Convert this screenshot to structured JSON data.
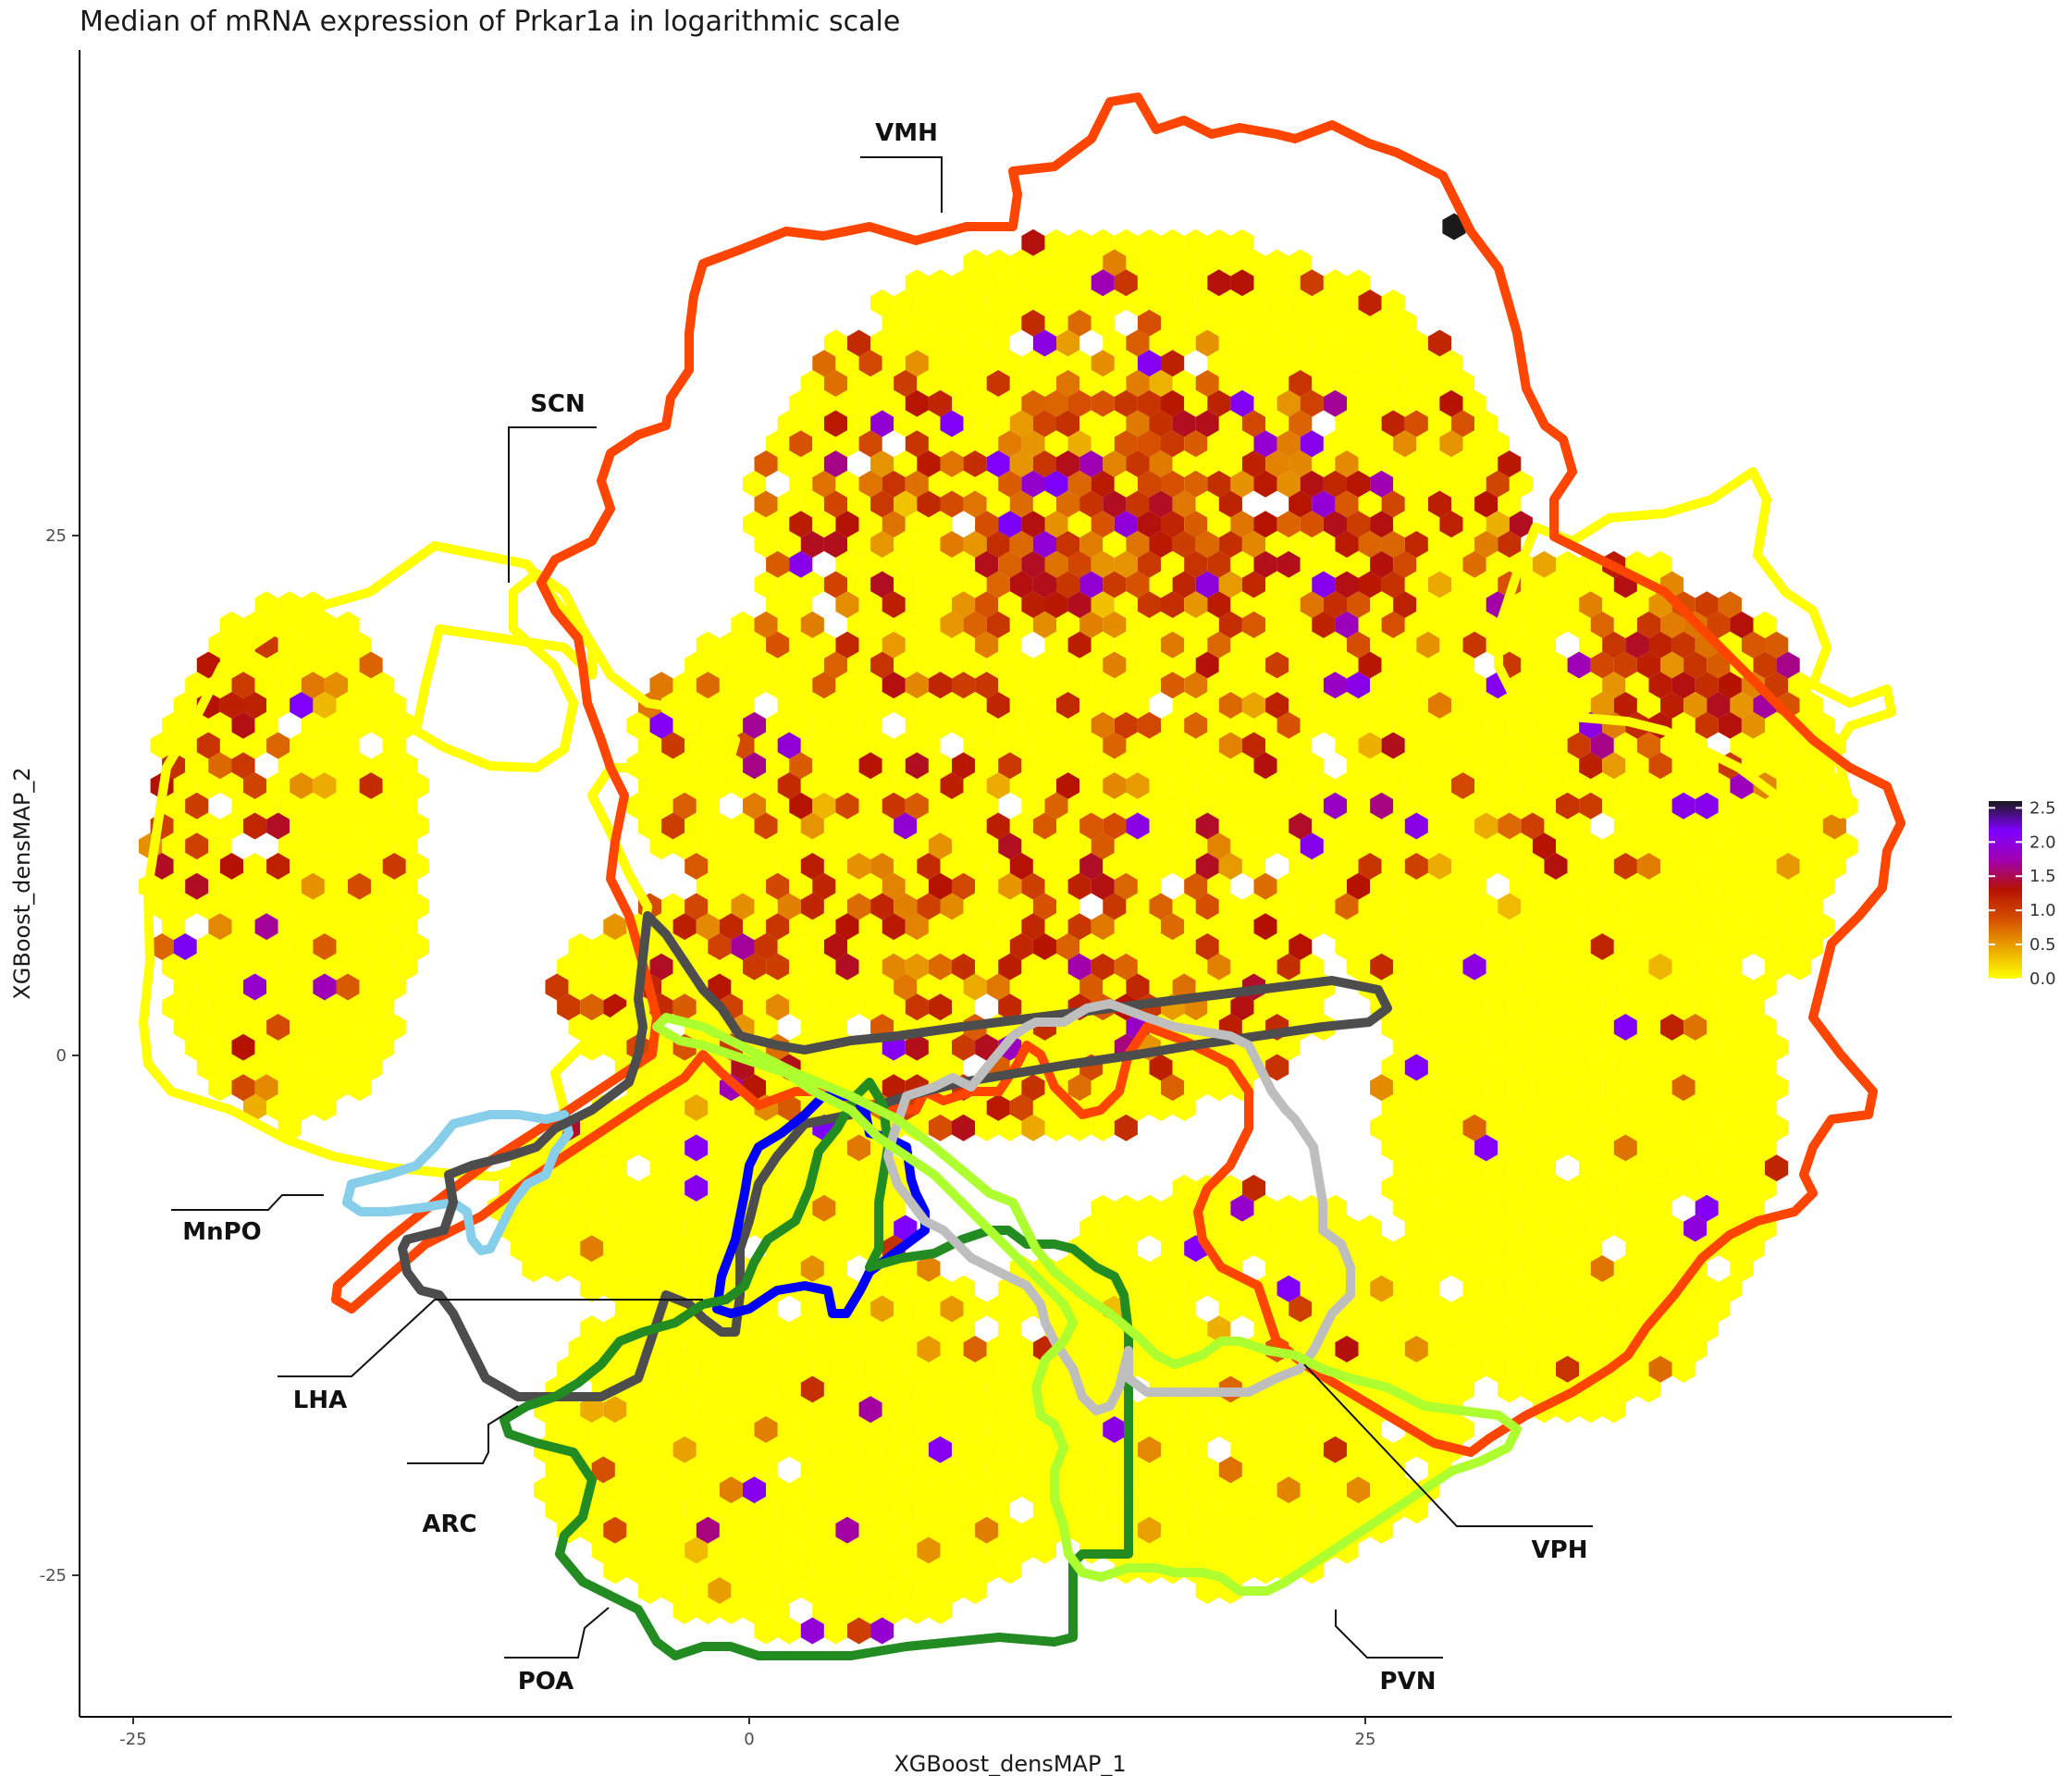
{
  "chart_data": {
    "type": "heatmap",
    "subtype": "hexbin",
    "title": "Median of mRNA expression of Prkar1a in logarithmic scale",
    "xlabel": "XGBoost_densMAP_1",
    "ylabel": "XGBoost_densMAP_2",
    "x_ticks": [
      -25,
      0,
      25
    ],
    "y_ticks": [
      -25,
      0,
      25
    ],
    "x_tick_labels": [
      "-25",
      "0",
      "25"
    ],
    "y_tick_labels": [
      "-25",
      "0",
      "25"
    ],
    "xlim": [
      -27.1,
      49.3
    ],
    "ylim": [
      -31.9,
      48.0
    ],
    "grid": false,
    "legend": {
      "position": "right",
      "ticks": [
        0.0,
        0.5,
        1.0,
        1.5,
        2.0,
        2.5
      ],
      "tick_labels": [
        "0.0",
        "0.5",
        "1.0",
        "1.5",
        "2.0",
        "2.5"
      ],
      "range": [
        0.0,
        2.6
      ],
      "colors": [
        "#ffff00",
        "#eba800",
        "#d65000",
        "#b51200",
        "#a000b0",
        "#7f00ff",
        "#1a1a1a"
      ]
    },
    "regions": [
      {
        "name": "VMH",
        "color": "#ff4500"
      },
      {
        "name": "SCN",
        "color": "#ffff00"
      },
      {
        "name": "MnPO",
        "color": "#87ceeb"
      },
      {
        "name": "LHA",
        "color": "#4d4d4d"
      },
      {
        "name": "ARC",
        "color": "#0000ff"
      },
      {
        "name": "POA",
        "color": "#228b22"
      },
      {
        "name": "VPH",
        "color": "#bebebe"
      },
      {
        "name": "PVN",
        "color": "#adff2f"
      }
    ]
  }
}
